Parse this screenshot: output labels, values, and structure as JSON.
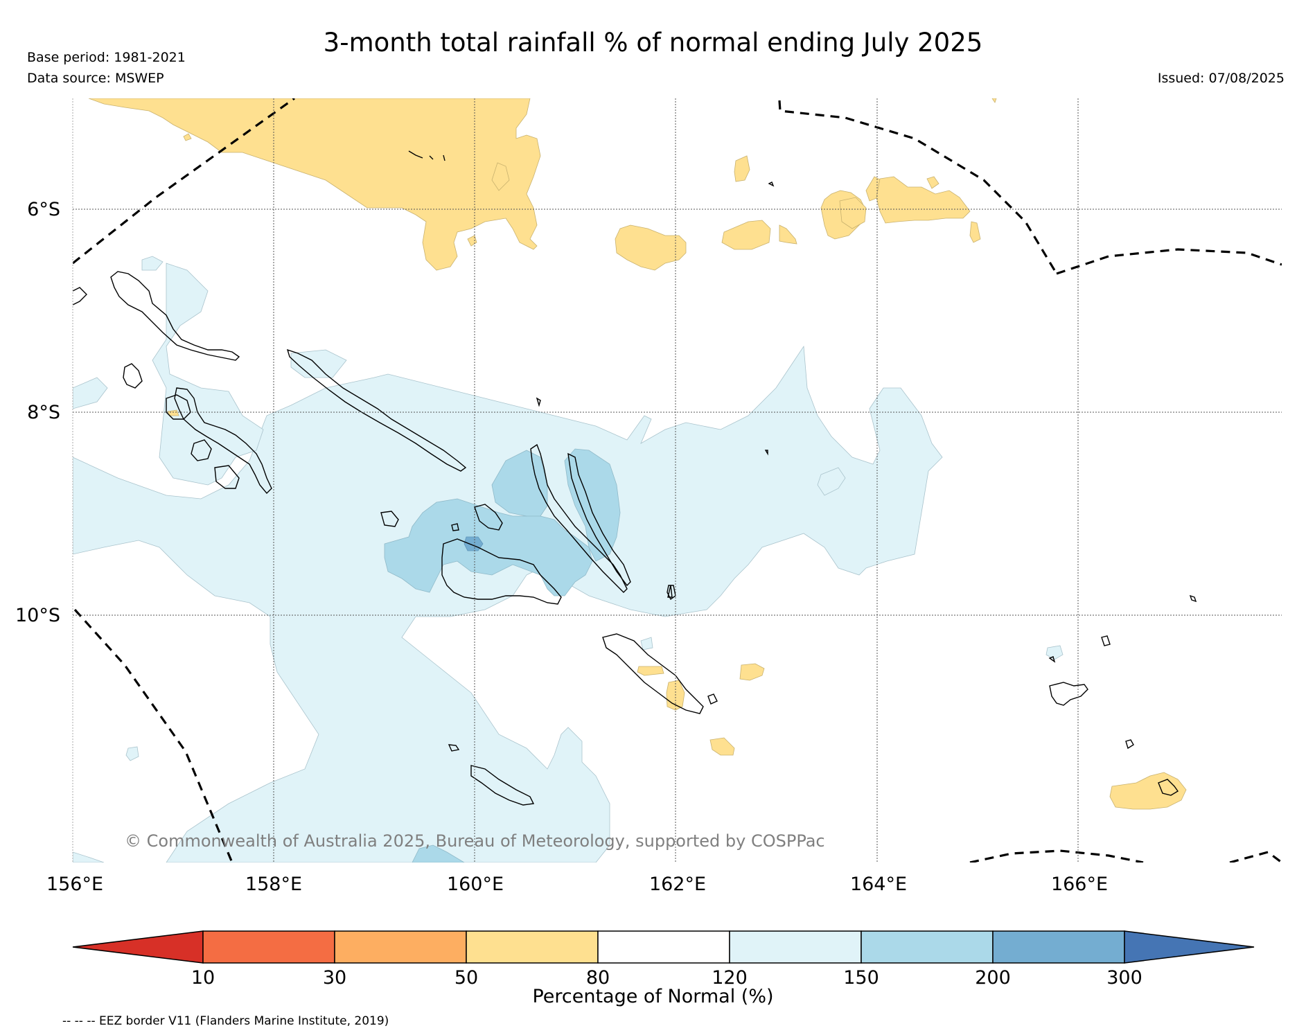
{
  "header": {
    "title": "3-month total rainfall % of normal ending July 2025",
    "base_period": "Base period: 1981-2021",
    "data_source": "Data source: MSWEP",
    "issued": "Issued: 07/08/2025"
  },
  "map": {
    "lat_labels": [
      "6°S",
      "8°S",
      "10°S"
    ],
    "lon_labels": [
      "156°E",
      "158°E",
      "160°E",
      "162°E",
      "164°E",
      "166°E"
    ],
    "copyright": "© Commonwealth of Australia 2025, Bureau of Meteorology, supported by COSPPac",
    "colors": {
      "ocean": "#ffffff",
      "cat_50_80": "#fee090",
      "cat_120_150": "#e0f3f8",
      "cat_150_200": "#abd9e9",
      "cat_200_300": "#74add1",
      "coast": "#000000",
      "eez": "#000000"
    }
  },
  "colorbar": {
    "label": "Percentage of Normal (%)",
    "ticks": [
      "10",
      "30",
      "50",
      "80",
      "120",
      "150",
      "200",
      "300"
    ],
    "colors": [
      "#d73027",
      "#f46d43",
      "#fdae61",
      "#fee090",
      "#ffffff",
      "#e0f3f8",
      "#abd9e9",
      "#74add1",
      "#4575b4"
    ]
  },
  "legend": {
    "eez_note": "-- -- -- EEZ border V11 (Flanders Marine Institute, 2019)"
  }
}
